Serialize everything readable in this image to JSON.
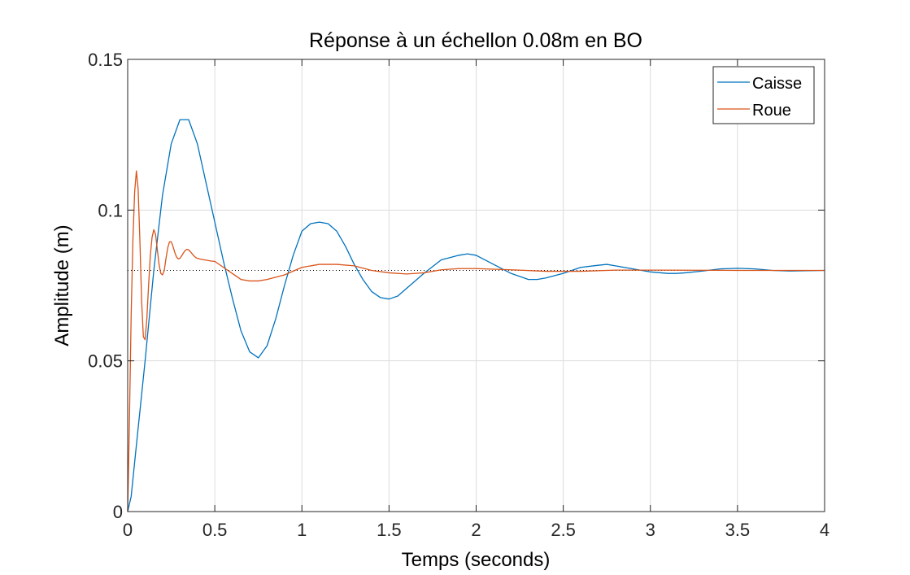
{
  "chart_data": {
    "type": "line",
    "title": "Réponse à un échellon 0.08m en BO",
    "xlabel": "Temps (seconds)",
    "ylabel": "Amplitude (m)",
    "xlim": [
      0,
      4
    ],
    "ylim": [
      0,
      0.15
    ],
    "xticks": [
      "0",
      "0.5",
      "1",
      "1.5",
      "2",
      "2.5",
      "3",
      "3.5",
      "4"
    ],
    "yticks": [
      "0",
      "0.05",
      "0.1",
      "0.15"
    ],
    "grid": true,
    "legend_position": "top-right",
    "reference_line": {
      "y": 0.08,
      "style": "dotted",
      "color": "#000000"
    },
    "series": [
      {
        "name": "Caisse",
        "color": "#0072BD",
        "x": [
          0,
          0.02,
          0.05,
          0.1,
          0.15,
          0.2,
          0.25,
          0.3,
          0.35,
          0.4,
          0.45,
          0.5,
          0.55,
          0.6,
          0.65,
          0.7,
          0.75,
          0.8,
          0.85,
          0.9,
          0.95,
          1.0,
          1.05,
          1.1,
          1.15,
          1.2,
          1.25,
          1.3,
          1.35,
          1.4,
          1.45,
          1.5,
          1.55,
          1.6,
          1.7,
          1.8,
          1.9,
          1.95,
          2.0,
          2.1,
          2.2,
          2.3,
          2.35,
          2.4,
          2.5,
          2.6,
          2.7,
          2.75,
          2.8,
          2.9,
          3.0,
          3.1,
          3.15,
          3.2,
          3.3,
          3.4,
          3.5,
          3.55,
          3.6,
          3.7,
          3.8,
          3.9,
          4.0
        ],
        "y": [
          0,
          0.005,
          0.022,
          0.05,
          0.08,
          0.105,
          0.122,
          0.13,
          0.13,
          0.122,
          0.109,
          0.096,
          0.083,
          0.071,
          0.06,
          0.053,
          0.051,
          0.055,
          0.064,
          0.075,
          0.085,
          0.093,
          0.0955,
          0.096,
          0.0955,
          0.093,
          0.088,
          0.082,
          0.077,
          0.073,
          0.071,
          0.0705,
          0.0715,
          0.074,
          0.079,
          0.0835,
          0.085,
          0.0855,
          0.085,
          0.082,
          0.079,
          0.077,
          0.077,
          0.0775,
          0.079,
          0.081,
          0.0817,
          0.082,
          0.0815,
          0.0805,
          0.0795,
          0.079,
          0.079,
          0.0792,
          0.0798,
          0.0805,
          0.0807,
          0.0806,
          0.0805,
          0.08,
          0.0798,
          0.0799,
          0.08
        ]
      },
      {
        "name": "Roue",
        "color": "#D95319",
        "x": [
          0,
          0.01,
          0.02,
          0.03,
          0.04,
          0.05,
          0.06,
          0.07,
          0.08,
          0.09,
          0.1,
          0.11,
          0.12,
          0.13,
          0.14,
          0.15,
          0.16,
          0.17,
          0.18,
          0.19,
          0.2,
          0.21,
          0.22,
          0.23,
          0.24,
          0.25,
          0.26,
          0.27,
          0.28,
          0.29,
          0.3,
          0.31,
          0.32,
          0.33,
          0.34,
          0.35,
          0.36,
          0.37,
          0.38,
          0.39,
          0.4,
          0.42,
          0.44,
          0.46,
          0.48,
          0.5,
          0.55,
          0.6,
          0.65,
          0.7,
          0.75,
          0.8,
          0.9,
          1.0,
          1.1,
          1.2,
          1.3,
          1.4,
          1.5,
          1.6,
          1.7,
          1.8,
          1.9,
          2.0,
          2.2,
          2.4,
          2.6,
          2.8,
          3.0,
          3.5,
          4.0
        ],
        "y": [
          0,
          0.03,
          0.065,
          0.09,
          0.106,
          0.113,
          0.107,
          0.09,
          0.07,
          0.058,
          0.057,
          0.064,
          0.075,
          0.085,
          0.091,
          0.0935,
          0.092,
          0.087,
          0.082,
          0.079,
          0.0785,
          0.08,
          0.084,
          0.0875,
          0.0895,
          0.0895,
          0.088,
          0.086,
          0.0845,
          0.0838,
          0.084,
          0.0848,
          0.0858,
          0.0866,
          0.087,
          0.0868,
          0.0862,
          0.0855,
          0.0848,
          0.0843,
          0.084,
          0.0837,
          0.0835,
          0.0833,
          0.0831,
          0.083,
          0.081,
          0.079,
          0.077,
          0.0765,
          0.0765,
          0.077,
          0.0785,
          0.081,
          0.082,
          0.082,
          0.0815,
          0.08,
          0.0792,
          0.0788,
          0.0792,
          0.0802,
          0.0806,
          0.0806,
          0.0802,
          0.0797,
          0.0797,
          0.0801,
          0.0801,
          0.08,
          0.08
        ]
      }
    ]
  }
}
